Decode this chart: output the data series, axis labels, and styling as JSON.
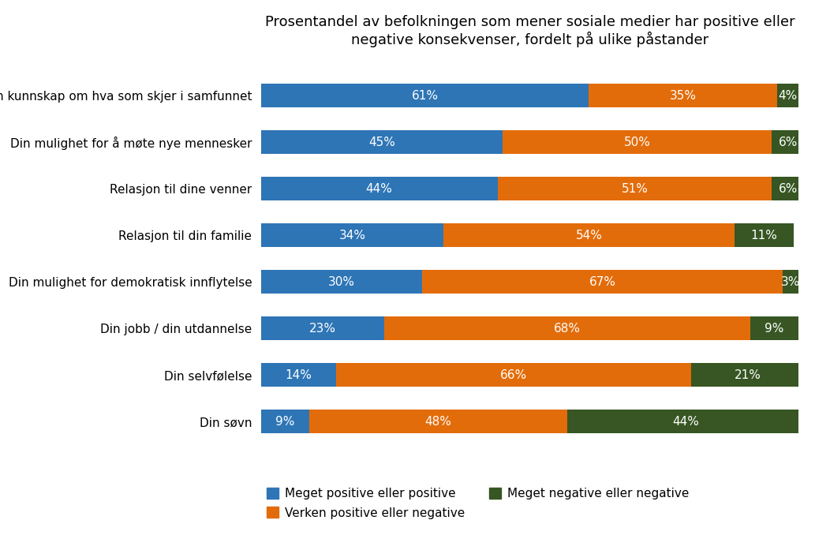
{
  "title": "Prosentandel av befolkningen som mener sosiale medier har positive eller\nnegative konsekvenser, fordelt på ulike påstander",
  "categories": [
    "Din kunnskap om hva som skjer i samfunnet",
    "Din mulighet for å møte nye mennesker",
    "Relasjon til dine venner",
    "Relasjon til din familie",
    "Din mulighet for demokratisk innflytelse",
    "Din jobb / din utdannelse",
    "Din selvfølelse",
    "Din søvn"
  ],
  "positive": [
    61,
    45,
    44,
    34,
    30,
    23,
    14,
    9
  ],
  "neutral": [
    35,
    50,
    51,
    54,
    67,
    68,
    66,
    48
  ],
  "negative": [
    4,
    6,
    6,
    11,
    3,
    9,
    21,
    44
  ],
  "color_positive": "#2E75B6",
  "color_neutral": "#E36C0A",
  "color_negative": "#375623",
  "legend_labels": [
    "Meget positive eller positive",
    "Verken positive eller negative",
    "Meget negative eller negative"
  ],
  "background_color": "#FFFFFF",
  "bar_height": 0.52,
  "title_fontsize": 13,
  "label_fontsize": 11,
  "bar_label_fontsize": 11
}
